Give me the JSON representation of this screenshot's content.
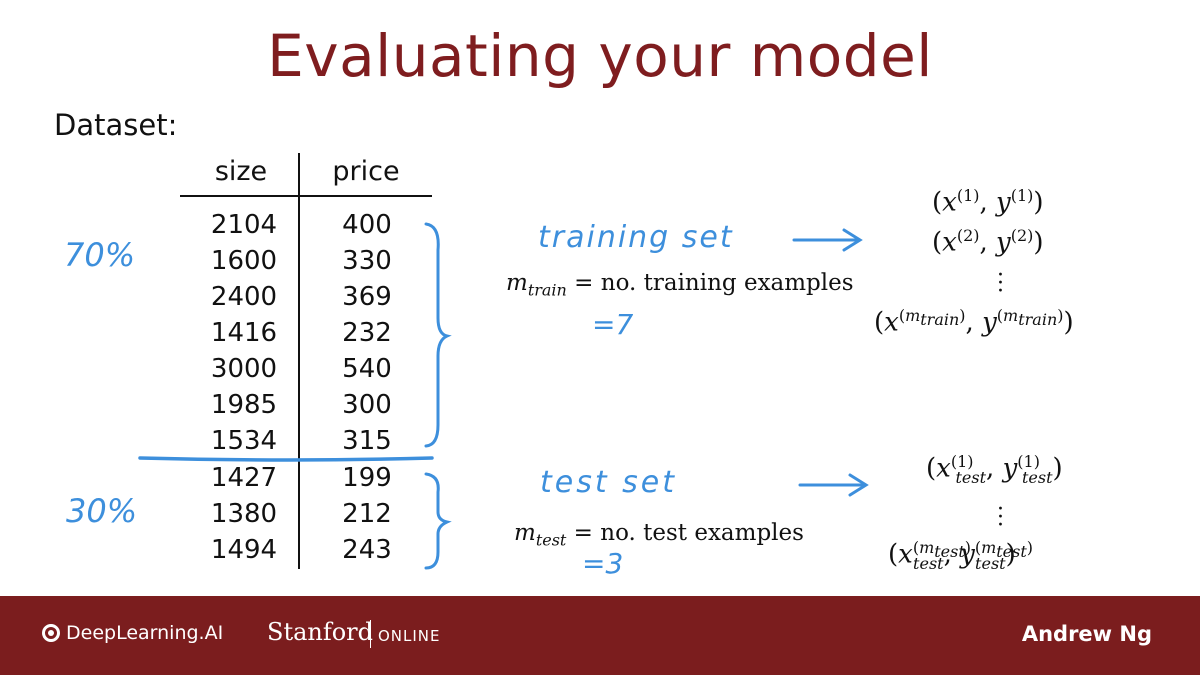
{
  "slide": {
    "title": "Evaluating your model",
    "dataset_label": "Dataset:",
    "table": {
      "headers": [
        "size",
        "price"
      ],
      "train_rows": [
        [
          "2104",
          "400"
        ],
        [
          "1600",
          "330"
        ],
        [
          "2400",
          "369"
        ],
        [
          "1416",
          "232"
        ],
        [
          "3000",
          "540"
        ],
        [
          "1985",
          "300"
        ],
        [
          "1534",
          "315"
        ]
      ],
      "test_rows": [
        [
          "1427",
          "199"
        ],
        [
          "1380",
          "212"
        ],
        [
          "1494",
          "243"
        ]
      ]
    },
    "annotations": {
      "train_percent": "70%",
      "test_percent": "30%",
      "training_set": "training set",
      "test_set": "test set",
      "m_train_value": "=7",
      "m_test_value": "=3",
      "arrow_train": "⟶",
      "arrow_test": "⟶"
    },
    "definitions": {
      "m_train_symbol": "m",
      "m_train_sub": "train",
      "m_train_text": " = no. training examples",
      "m_test_symbol": "m",
      "m_test_sub": "test",
      "m_test_text": " = no. test examples"
    },
    "colors": {
      "title": "#7f1d1f",
      "handwriting": "#3d8fdc",
      "footer": "#7b1d1e"
    }
  },
  "footer": {
    "brand": "DeepLearning.AI",
    "university": "Stanford",
    "online": "ONLINE",
    "author": "Andrew Ng"
  }
}
